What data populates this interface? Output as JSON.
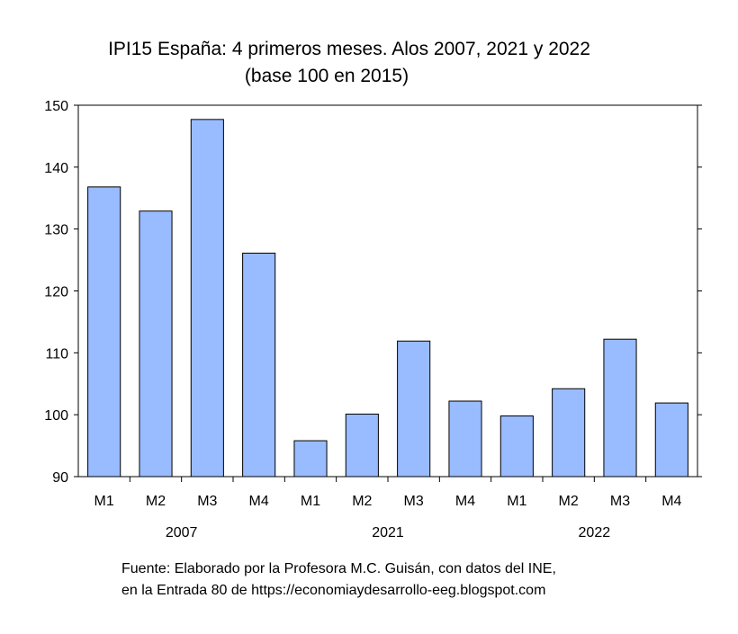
{
  "chart_data": {
    "type": "bar",
    "title": "IPI15 España: 4 primeros meses. Alos 2007, 2021 y 2022",
    "subtitle": "(base 100 en 2015)",
    "xlabel": "",
    "ylabel": "",
    "ylim": [
      90,
      150
    ],
    "yticks": [
      90,
      100,
      110,
      120,
      130,
      140,
      150
    ],
    "grid": false,
    "categories": [
      "M1",
      "M2",
      "M3",
      "M4",
      "M1",
      "M2",
      "M3",
      "M4",
      "M1",
      "M2",
      "M3",
      "M4"
    ],
    "groups": [
      "2007",
      "2021",
      "2022"
    ],
    "values": [
      136.8,
      132.9,
      147.7,
      126.1,
      95.8,
      100.1,
      111.9,
      102.2,
      99.8,
      104.2,
      112.2,
      101.9
    ],
    "bar_color": "#99bbff"
  },
  "source": {
    "line1": "Fuente: Elaborado por la Profesora M.C. Guisán, con datos del INE,",
    "line2": "en la Entrada 80 de https://economiaydesarrollo-eeg.blogspot.com"
  }
}
